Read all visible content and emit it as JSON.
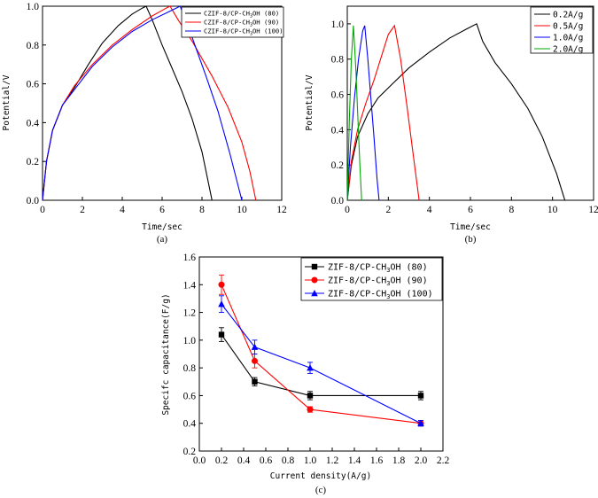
{
  "chart_data": [
    {
      "id": "a",
      "type": "line",
      "caption": "(a)",
      "xlabel": "Time/sec",
      "ylabel": "Potential/V",
      "xlim": [
        0,
        12
      ],
      "ylim": [
        0,
        1.0
      ],
      "xticks": [
        0,
        2,
        4,
        6,
        8,
        10,
        12
      ],
      "yticks": [
        0.0,
        0.2,
        0.4,
        0.6,
        0.8,
        1.0
      ],
      "legend_position": "top-right",
      "series": [
        {
          "name": "CZIF-8/CP-CH3OH (80)",
          "legend_text": "CZIF-8/CP-CH",
          "sub": "3",
          "tail": "OH (80)",
          "color": "#000000",
          "x": [
            0,
            0.2,
            0.5,
            1.0,
            1.6,
            2.3,
            3.0,
            3.8,
            4.5,
            5.0,
            5.2,
            5.5,
            6.0,
            6.5,
            7.0,
            7.5,
            8.0,
            8.3,
            8.5
          ],
          "y": [
            0,
            0.2,
            0.36,
            0.49,
            0.58,
            0.7,
            0.81,
            0.9,
            0.96,
            0.99,
            1.0,
            0.93,
            0.8,
            0.68,
            0.56,
            0.42,
            0.25,
            0.1,
            0
          ]
        },
        {
          "name": "CZIF-8/CP-CH3OH (90)",
          "legend_text": "CZIF-8/CP-CH",
          "sub": "3",
          "tail": "OH (90)",
          "color": "#ff0000",
          "x": [
            0,
            0.2,
            0.5,
            1.0,
            1.6,
            2.5,
            3.5,
            4.5,
            5.5,
            6.2,
            6.4,
            6.8,
            7.5,
            8.5,
            9.3,
            10.0,
            10.4,
            10.7
          ],
          "y": [
            0,
            0.2,
            0.36,
            0.49,
            0.59,
            0.7,
            0.8,
            0.88,
            0.95,
            0.99,
            1.0,
            0.93,
            0.82,
            0.64,
            0.48,
            0.3,
            0.15,
            0
          ]
        },
        {
          "name": "CZIF-8/CP-CH3OH (100)",
          "legend_text": "CZIF-8/CP-CH",
          "sub": "3",
          "tail": "OH (100)",
          "color": "#0000ff",
          "x": [
            0,
            0.2,
            0.5,
            1.0,
            1.6,
            2.5,
            3.5,
            4.5,
            5.5,
            6.3,
            6.9,
            7.1,
            7.5,
            8.2,
            8.8,
            9.4,
            9.8,
            10.0
          ],
          "y": [
            0,
            0.2,
            0.36,
            0.49,
            0.57,
            0.69,
            0.79,
            0.87,
            0.93,
            0.97,
            1.0,
            0.95,
            0.84,
            0.64,
            0.46,
            0.24,
            0.08,
            0
          ]
        }
      ]
    },
    {
      "id": "b",
      "type": "line",
      "caption": "(b)",
      "xlabel": "Time/sec",
      "ylabel": "Potential/V",
      "xlim": [
        0,
        12
      ],
      "ylim": [
        0,
        1.1
      ],
      "xticks": [
        0,
        2,
        4,
        6,
        8,
        10,
        12
      ],
      "yticks": [
        0.0,
        0.2,
        0.4,
        0.6,
        0.8,
        1.0
      ],
      "legend_position": "top-right",
      "series": [
        {
          "name": "0.2A/g",
          "color": "#000000",
          "x": [
            0,
            0.2,
            0.5,
            1.0,
            1.5,
            2.2,
            3.0,
            4.0,
            5.0,
            5.8,
            6.3,
            6.6,
            7.2,
            8.0,
            8.8,
            9.5,
            10.2,
            10.6
          ],
          "y": [
            0,
            0.2,
            0.36,
            0.49,
            0.58,
            0.66,
            0.75,
            0.84,
            0.92,
            0.97,
            1.0,
            0.9,
            0.78,
            0.66,
            0.52,
            0.36,
            0.15,
            0
          ]
        },
        {
          "name": "0.5A/g",
          "color": "#ff0000",
          "x": [
            0,
            0.2,
            0.5,
            0.9,
            1.3,
            1.7,
            2.0,
            2.3,
            2.6,
            2.9,
            3.2,
            3.5
          ],
          "y": [
            0,
            0.22,
            0.4,
            0.55,
            0.68,
            0.83,
            0.94,
            0.99,
            0.8,
            0.54,
            0.27,
            0
          ]
        },
        {
          "name": "1.0A/g",
          "color": "#0000ff",
          "x": [
            0,
            0.15,
            0.35,
            0.55,
            0.75,
            0.85,
            1.0,
            1.15,
            1.3,
            1.45,
            1.55
          ],
          "y": [
            0,
            0.3,
            0.58,
            0.8,
            0.96,
            0.99,
            0.8,
            0.58,
            0.36,
            0.12,
            0
          ]
        },
        {
          "name": "2.0A/g",
          "color": "#00aa00",
          "x": [
            0,
            0.1,
            0.2,
            0.3,
            0.42,
            0.52,
            0.62,
            0.7
          ],
          "y": [
            0,
            0.45,
            0.8,
            0.99,
            0.74,
            0.46,
            0.18,
            0
          ]
        }
      ]
    },
    {
      "id": "c",
      "type": "line",
      "caption": "(c)",
      "xlabel": "Current density(A/g)",
      "ylabel": "Specifc capacitance(F/g)",
      "xlim": [
        0,
        2.2
      ],
      "ylim": [
        0.2,
        1.6
      ],
      "xticks": [
        0,
        0.2,
        0.4,
        0.6,
        0.8,
        1.0,
        1.2,
        1.4,
        1.6,
        1.8,
        2.0,
        2.2
      ],
      "yticks": [
        0.2,
        0.4,
        0.6,
        0.8,
        1.0,
        1.2,
        1.4,
        1.6
      ],
      "legend_position": "top-right",
      "series": [
        {
          "name": "ZIF-8/CP-CH3OH (80)",
          "legend_text": "ZIF-8/CP-CH",
          "sub": "3",
          "tail": "OH (80)",
          "color": "#000000",
          "marker": "square",
          "x": [
            0.2,
            0.5,
            1.0,
            2.0
          ],
          "y": [
            1.04,
            0.7,
            0.6,
            0.6
          ],
          "err": [
            0.05,
            0.03,
            0.03,
            0.03
          ]
        },
        {
          "name": "ZIF-8/CP-CH3OH (90)",
          "legend_text": "ZIF-8/CP-CH",
          "sub": "3",
          "tail": "OH (90)",
          "color": "#ff0000",
          "marker": "circle",
          "x": [
            0.2,
            0.5,
            1.0,
            2.0
          ],
          "y": [
            1.4,
            0.85,
            0.5,
            0.4
          ],
          "err": [
            0.07,
            0.05,
            0.02,
            0.02
          ]
        },
        {
          "name": "ZIF-8/CP-CH3OH (100)",
          "legend_text": "ZIF-8/CP-CH",
          "sub": "3",
          "tail": "OH (100)",
          "color": "#0000ff",
          "marker": "triangle",
          "x": [
            0.2,
            0.5,
            1.0,
            2.0
          ],
          "y": [
            1.26,
            0.95,
            0.8,
            0.4
          ],
          "err": [
            0.06,
            0.05,
            0.04,
            0.02
          ]
        }
      ]
    }
  ]
}
